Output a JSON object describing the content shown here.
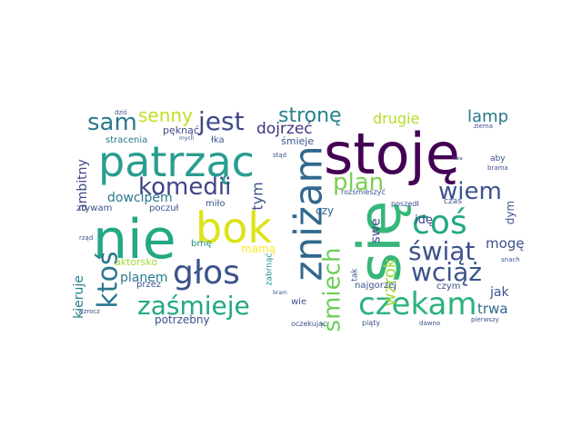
{
  "words": [
    {
      "text": "stoję",
      "color": "#440154"
    },
    {
      "text": "nie",
      "color": "#22a884"
    },
    {
      "text": "się",
      "color": "#35b779"
    },
    {
      "text": "bok",
      "color": "#dde318"
    },
    {
      "text": "patrząc",
      "color": "#2a9d8f"
    },
    {
      "text": "zniżam",
      "color": "#31688e"
    },
    {
      "text": "czekam",
      "color": "#2db27d"
    },
    {
      "text": "głos",
      "color": "#3b528b"
    },
    {
      "text": "coś",
      "color": "#22a884"
    },
    {
      "text": "zaśmieje",
      "color": "#22a884"
    },
    {
      "text": "ktoś",
      "color": "#2a788e"
    },
    {
      "text": "śmiech",
      "color": "#6ece58"
    },
    {
      "text": "komedii",
      "color": "#414487"
    },
    {
      "text": "świąt",
      "color": "#3b528b"
    },
    {
      "text": "wciąż",
      "color": "#3b528b"
    },
    {
      "text": "wiem",
      "color": "#3b528b"
    },
    {
      "text": "jest",
      "color": "#3e4a89"
    },
    {
      "text": "sam",
      "color": "#2a788e"
    },
    {
      "text": "plan",
      "color": "#7ad151"
    },
    {
      "text": "stronę",
      "color": "#26828e"
    },
    {
      "text": "senny",
      "color": "#c2df23"
    },
    {
      "text": "lamp",
      "color": "#2a788e"
    },
    {
      "text": "wzrok",
      "color": "#a0da39"
    },
    {
      "text": "dojrzeć",
      "color": "#46337e"
    },
    {
      "text": "drugie",
      "color": "#b5de2b"
    },
    {
      "text": "ambitny",
      "color": "#404688"
    },
    {
      "text": "dowcipem",
      "color": "#2a788e"
    },
    {
      "text": "tym",
      "color": "#3b528b"
    },
    {
      "text": "mogę",
      "color": "#3b528b"
    },
    {
      "text": "planem",
      "color": "#2a788e"
    },
    {
      "text": "kieruje",
      "color": "#26828e"
    },
    {
      "text": "trwa",
      "color": "#31688e"
    },
    {
      "text": "jak",
      "color": "#3b528b"
    },
    {
      "text": "potrzebny",
      "color": "#3b528b"
    },
    {
      "text": "mamą",
      "color": "#fde725"
    },
    {
      "text": "swe",
      "color": "#3e4a89"
    },
    {
      "text": "idę",
      "color": "#414487"
    },
    {
      "text": "czy",
      "color": "#31688e"
    },
    {
      "text": "dym",
      "color": "#3b528b"
    },
    {
      "text": "pęknąć",
      "color": "#3e4a89"
    },
    {
      "text": "łka",
      "color": "#3b528b"
    },
    {
      "text": "śmieje",
      "color": "#3b528b"
    },
    {
      "text": "stracenia",
      "color": "#2a788e"
    },
    {
      "text": "zrywam",
      "color": "#3b528b"
    },
    {
      "text": "poczuł",
      "color": "#3b528b"
    },
    {
      "text": "miło",
      "color": "#3b528b"
    },
    {
      "text": "brnę",
      "color": "#21918c"
    },
    {
      "text": "aktorsko",
      "color": "#a0da39"
    },
    {
      "text": "przez",
      "color": "#3b528b"
    },
    {
      "text": "zabrnąć",
      "color": "#21918c"
    },
    {
      "text": "wie",
      "color": "#3b528b"
    },
    {
      "text": "najgorzej",
      "color": "#3b528b"
    },
    {
      "text": "czym",
      "color": "#3b528b"
    },
    {
      "text": "tak",
      "color": "#3b528b"
    },
    {
      "text": "rozśmieszyć",
      "color": "#3b528b"
    },
    {
      "text": "poszedł",
      "color": "#3b528b"
    },
    {
      "text": "czas",
      "color": "#3b528b"
    },
    {
      "text": "aby",
      "color": "#3b528b"
    },
    {
      "text": "brama",
      "color": "#3b528b"
    },
    {
      "text": "snach",
      "color": "#3b528b"
    },
    {
      "text": "ziema",
      "color": "#3b528b"
    },
    {
      "text": "dziś",
      "color": "#3b528b"
    },
    {
      "text": "mych",
      "color": "#3b528b"
    },
    {
      "text": "stąd",
      "color": "#3b528b"
    },
    {
      "text": "rząd",
      "color": "#3b528b"
    },
    {
      "text": "wzrocz",
      "color": "#3b528b"
    },
    {
      "text": "oczekując",
      "color": "#3b528b"
    },
    {
      "text": "piąty",
      "color": "#3b528b"
    },
    {
      "text": "dawno",
      "color": "#3b528b"
    },
    {
      "text": "pierwszy",
      "color": "#3b528b"
    },
    {
      "text": "fiała",
      "color": "#3b528b"
    },
    {
      "text": "bram",
      "color": "#3b528b"
    }
  ]
}
